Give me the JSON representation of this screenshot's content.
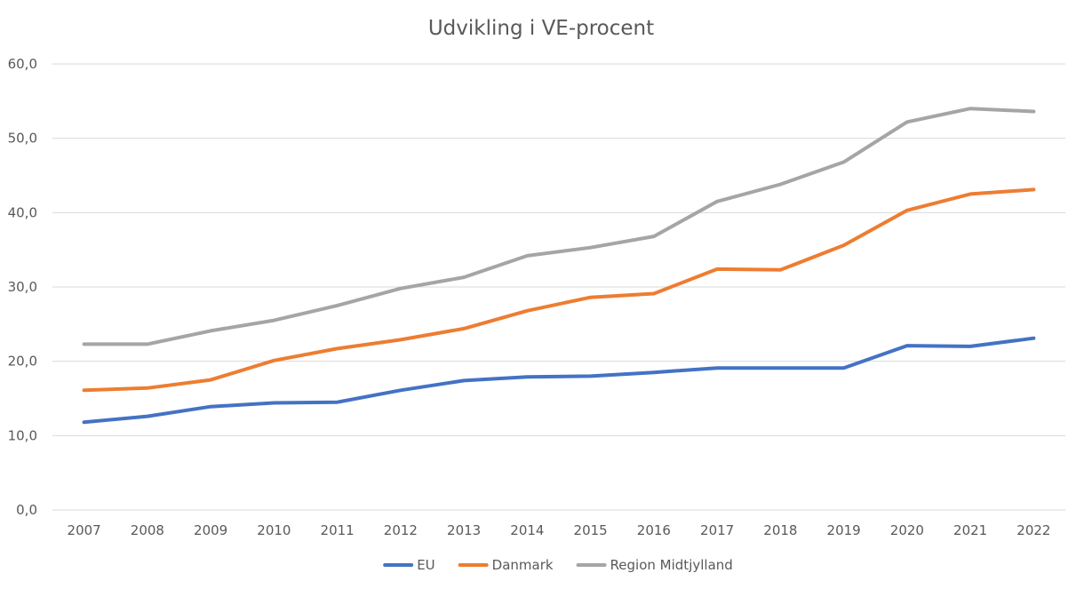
{
  "chart_data": {
    "type": "line",
    "title": "Udvikling i VE-procent",
    "xlabel": "",
    "ylabel": "",
    "ylim": [
      0,
      60
    ],
    "yticks": [
      "0,0",
      "10,0",
      "20,0",
      "30,0",
      "40,0",
      "50,0",
      "60,0"
    ],
    "grid": true,
    "legend_position": "bottom",
    "categories": [
      "2007",
      "2008",
      "2009",
      "2010",
      "2011",
      "2012",
      "2013",
      "2014",
      "2015",
      "2016",
      "2017",
      "2018",
      "2019",
      "2020",
      "2021",
      "2022"
    ],
    "series": [
      {
        "name": "EU",
        "color": "#4472c4",
        "values": [
          11.8,
          12.6,
          13.9,
          14.4,
          14.5,
          16.1,
          17.4,
          17.9,
          18.0,
          18.5,
          19.1,
          19.1,
          19.1,
          22.1,
          22.0,
          23.1
        ]
      },
      {
        "name": "Danmark",
        "color": "#ed7d31",
        "values": [
          16.1,
          16.4,
          17.5,
          20.1,
          21.7,
          22.9,
          24.4,
          26.8,
          28.6,
          29.1,
          32.4,
          32.3,
          35.6,
          40.3,
          42.5,
          43.1
        ]
      },
      {
        "name": "Region Midtjylland",
        "color": "#a5a5a5",
        "values": [
          22.3,
          22.3,
          24.1,
          25.5,
          27.5,
          29.8,
          31.3,
          34.2,
          35.3,
          36.8,
          41.5,
          43.8,
          46.8,
          52.2,
          54.0,
          53.6
        ]
      }
    ]
  }
}
